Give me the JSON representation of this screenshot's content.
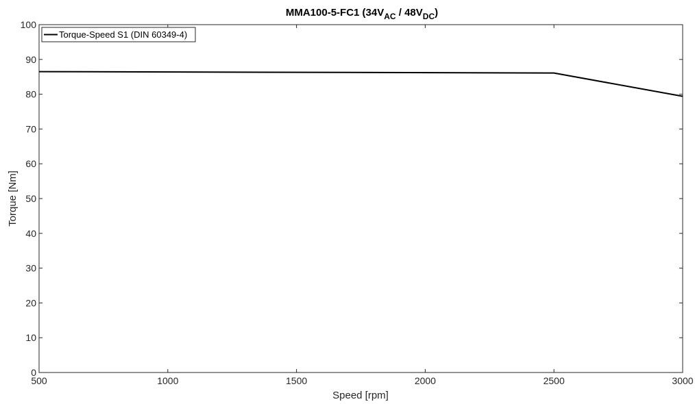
{
  "chart_data": {
    "type": "line",
    "title": {
      "main": "MMA100-5-FC1 (34V",
      "sub1": "AC",
      "mid": " / 48V",
      "sub2": "DC",
      "end": ")"
    },
    "xlabel": "Speed [rpm]",
    "ylabel": "Torque [Nm]",
    "xlim": [
      500,
      3000
    ],
    "ylim": [
      0,
      100
    ],
    "xticks": [
      500,
      1000,
      1500,
      2000,
      2500,
      3000
    ],
    "yticks": [
      0,
      10,
      20,
      30,
      40,
      50,
      60,
      70,
      80,
      90,
      100
    ],
    "grid": false,
    "legend_position": "top-left",
    "series": [
      {
        "name": "Torque-Speed S1 (DIN 60349-4)",
        "color": "#000000",
        "x": [
          500,
          2500,
          3000
        ],
        "y": [
          86.5,
          86.1,
          79.4
        ]
      }
    ]
  }
}
